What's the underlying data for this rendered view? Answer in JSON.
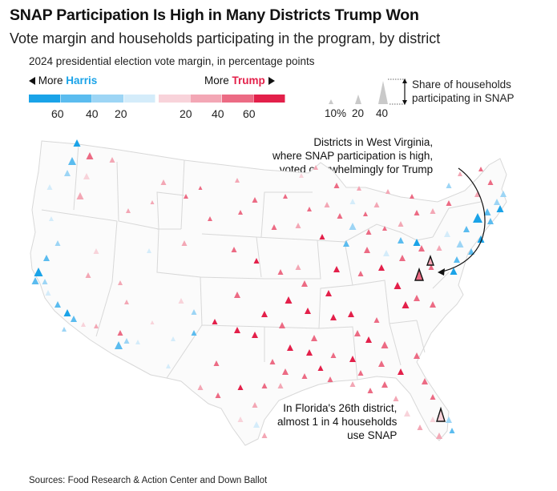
{
  "title": "SNAP Participation Is High in Many Districts Trump Won",
  "subtitle": "Vote margin and households participating in the program, by district",
  "legend": {
    "title": "2024 presidential election vote margin, in percentage points",
    "harris_prefix": "More",
    "harris_name": "Harris",
    "trump_prefix": "More",
    "trump_name": "Trump",
    "harris_ticks": [
      "60",
      "40",
      "20"
    ],
    "trump_ticks": [
      "20",
      "40",
      "60"
    ],
    "colors": [
      "#1aa3e8",
      "#5bbcef",
      "#9dd5f5",
      "#d4ecfa",
      "#f8d3da",
      "#f3a7b5",
      "#ec6b84",
      "#e3204a"
    ],
    "harris_color": "#1aa3e8",
    "trump_color": "#e3204a"
  },
  "size_legend": {
    "label_line1": "Share of households",
    "label_line2": "participating in SNAP",
    "ticks": [
      "10%",
      "20",
      "40"
    ]
  },
  "annotations": {
    "wv_line1": "Districts in West Virginia,",
    "wv_line2": "where SNAP participation is high,",
    "wv_line3": "voted overwhelmingly for Trump",
    "fl_line1": "In Florida's 26th district,",
    "fl_line2": "almost 1 in 4 households",
    "fl_line3": "use SNAP"
  },
  "source": "Sources: Food Research & Action Center and Down Ballot"
}
